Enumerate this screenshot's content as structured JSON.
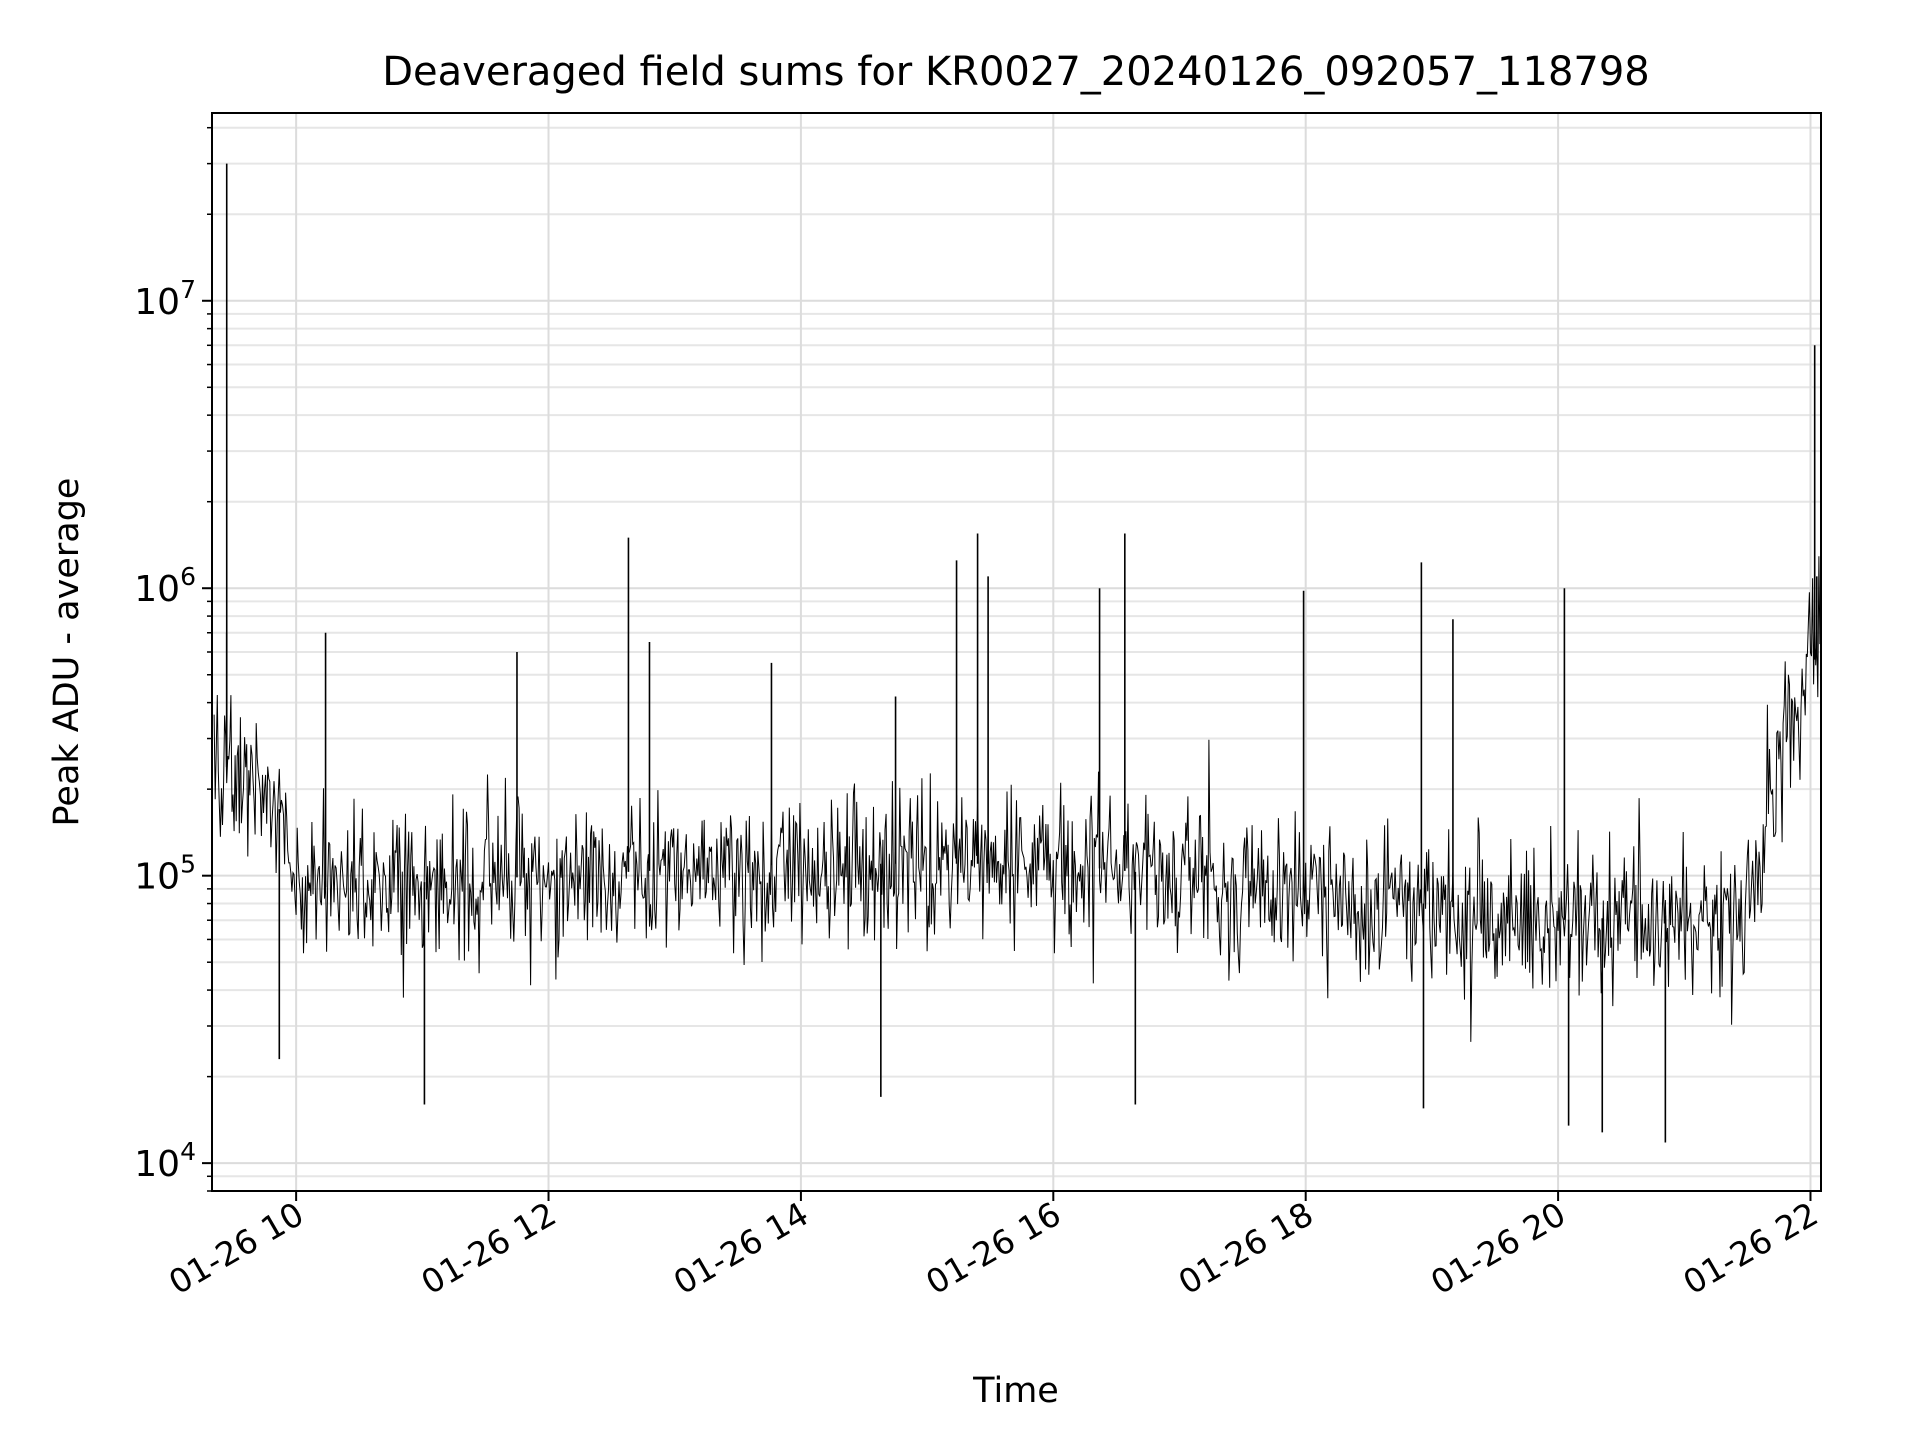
{
  "chart_data": {
    "type": "line",
    "title": "Deaveraged field sums for KR0027_20240126_092057_118798",
    "xlabel": "Time",
    "ylabel": "Peak ADU - average",
    "yscale": "log",
    "xlim": [
      "2024-01-26T09:20",
      "2024-01-26T22:05"
    ],
    "ylim": [
      8000,
      45000000
    ],
    "grid": "major and minor",
    "line_color": "#000000",
    "x_ticks": [
      "01-26 10",
      "01-26 12",
      "01-26 14",
      "01-26 16",
      "01-26 18",
      "01-26 20",
      "01-26 22"
    ],
    "y_ticks": [
      {
        "base": "10",
        "exp": "4"
      },
      {
        "base": "10",
        "exp": "5"
      },
      {
        "base": "10",
        "exp": "6"
      },
      {
        "base": "10",
        "exp": "7"
      }
    ],
    "sample_interval_seconds": 30,
    "baseline_trend": [
      {
        "time": "2024-01-26T09:21",
        "value": 250000
      },
      {
        "time": "2024-01-26T09:50",
        "value": 200000
      },
      {
        "time": "2024-01-26T10:00",
        "value": 90000
      },
      {
        "time": "2024-01-26T12:00",
        "value": 100000
      },
      {
        "time": "2024-01-26T14:00",
        "value": 110000
      },
      {
        "time": "2024-01-26T16:00",
        "value": 110000
      },
      {
        "time": "2024-01-26T18:00",
        "value": 90000
      },
      {
        "time": "2024-01-26T20:00",
        "value": 70000
      },
      {
        "time": "2024-01-26T21:30",
        "value": 75000
      },
      {
        "time": "2024-01-26T21:40",
        "value": 200000
      },
      {
        "time": "2024-01-26T22:05",
        "value": 650000
      }
    ],
    "spikes": [
      {
        "time": "2024-01-26T09:27",
        "value": 30000000
      },
      {
        "time": "2024-01-26T09:27",
        "value": 700000
      },
      {
        "time": "2024-01-26T10:14",
        "value": 700000
      },
      {
        "time": "2024-01-26T11:45",
        "value": 600000
      },
      {
        "time": "2024-01-26T12:38",
        "value": 1500000
      },
      {
        "time": "2024-01-26T12:48",
        "value": 650000
      },
      {
        "time": "2024-01-26T13:46",
        "value": 550000
      },
      {
        "time": "2024-01-26T14:45",
        "value": 420000
      },
      {
        "time": "2024-01-26T15:14",
        "value": 1250000
      },
      {
        "time": "2024-01-26T15:24",
        "value": 1550000
      },
      {
        "time": "2024-01-26T15:29",
        "value": 1100000
      },
      {
        "time": "2024-01-26T16:22",
        "value": 1000000
      },
      {
        "time": "2024-01-26T16:34",
        "value": 1550000
      },
      {
        "time": "2024-01-26T17:59",
        "value": 980000
      },
      {
        "time": "2024-01-26T18:55",
        "value": 1230000
      },
      {
        "time": "2024-01-26T19:10",
        "value": 780000
      },
      {
        "time": "2024-01-26T20:03",
        "value": 1000000
      },
      {
        "time": "2024-01-26T22:02",
        "value": 7000000
      },
      {
        "time": "2024-01-26T22:03",
        "value": 1100000
      },
      {
        "time": "2024-01-26T11:01",
        "value": 16000
      },
      {
        "time": "2024-01-26T14:38",
        "value": 17000
      },
      {
        "time": "2024-01-26T16:39",
        "value": 16000
      },
      {
        "time": "2024-01-26T18:56",
        "value": 15500
      },
      {
        "time": "2024-01-26T20:05",
        "value": 13500
      },
      {
        "time": "2024-01-26T20:21",
        "value": 12800
      },
      {
        "time": "2024-01-26T20:51",
        "value": 11800
      },
      {
        "time": "2024-01-26T09:52",
        "value": 23000
      }
    ]
  }
}
